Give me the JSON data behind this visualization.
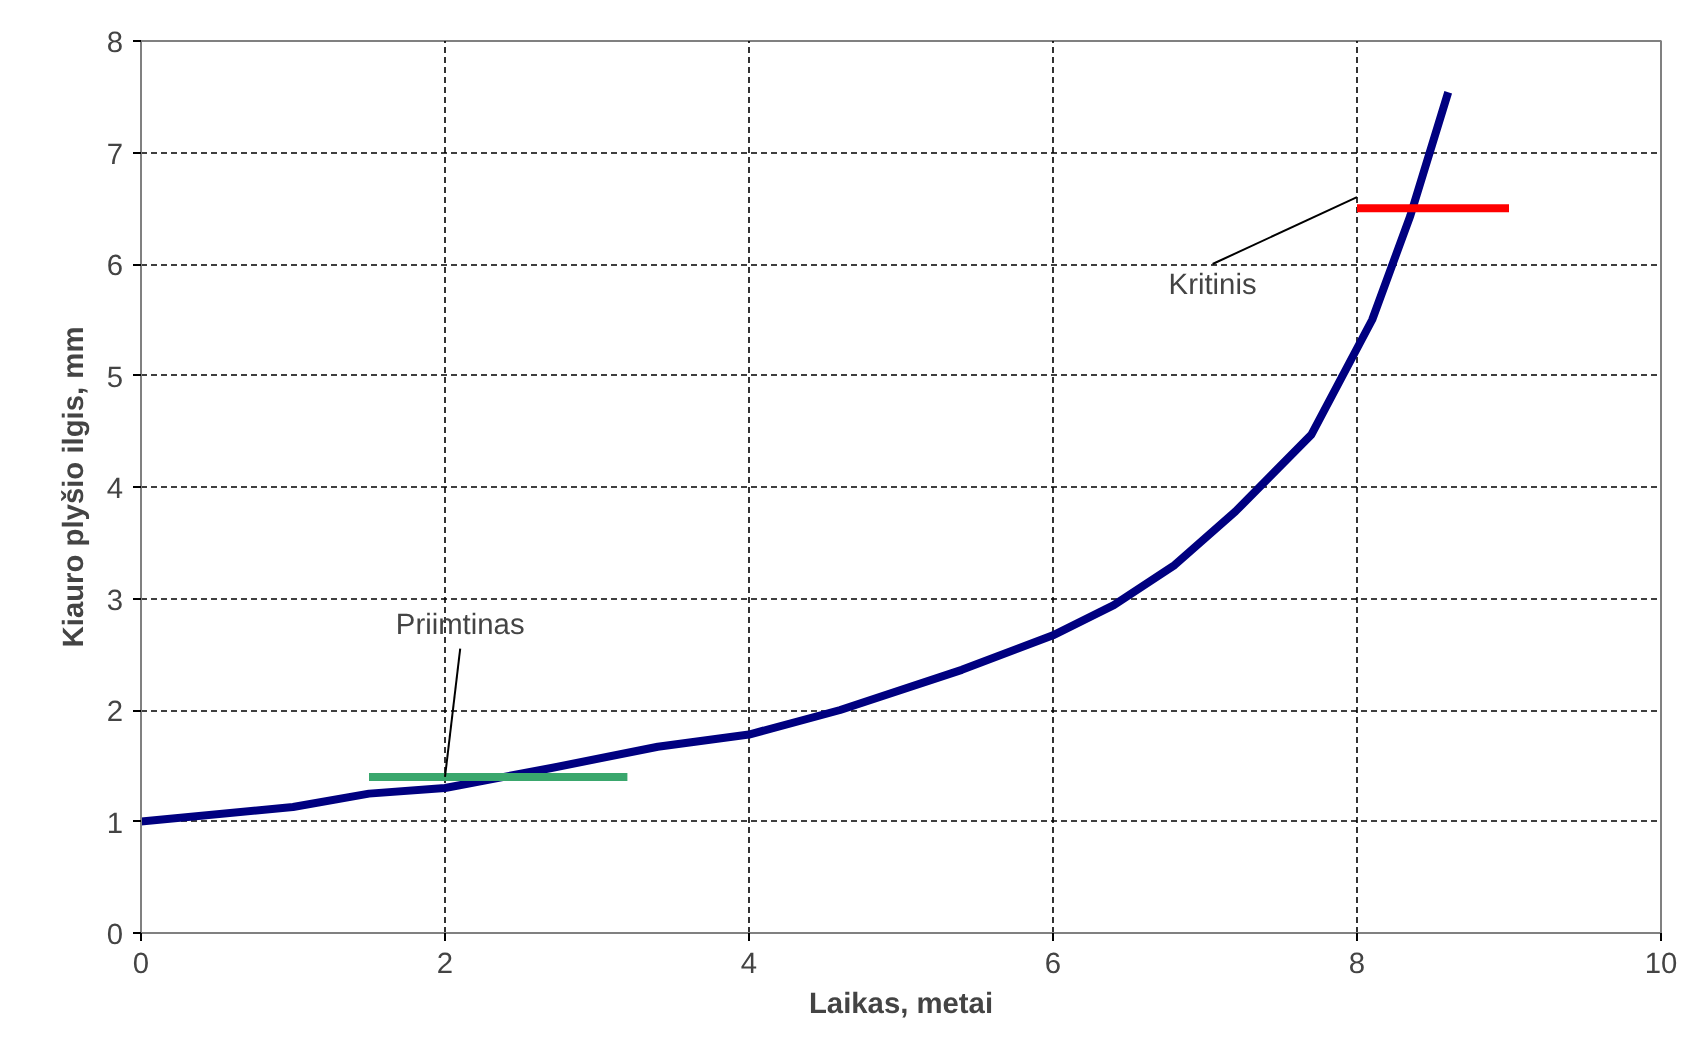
{
  "chart_data": {
    "type": "line",
    "xlabel": "Laikas, metai",
    "ylabel": "Kiauro plyšio ilgis, mm",
    "xlim": [
      0,
      10
    ],
    "ylim": [
      0,
      8
    ],
    "xticks": [
      0,
      2,
      4,
      6,
      8,
      10
    ],
    "yticks": [
      0,
      1,
      2,
      3,
      4,
      5,
      6,
      7,
      8
    ],
    "grid": true,
    "marker": "none",
    "line_style": "solid",
    "series": [
      {
        "color": "#000080",
        "x": [
          0,
          1,
          1.5,
          2,
          2.7,
          3.4,
          4,
          4.6,
          5.4,
          6,
          6.4,
          6.8,
          7.2,
          7.7,
          8.1,
          8.35,
          8.6
        ],
        "values": [
          1.0,
          1.13,
          1.25,
          1.3,
          1.48,
          1.67,
          1.78,
          2.0,
          2.36,
          2.67,
          2.94,
          3.3,
          3.78,
          4.47,
          5.5,
          6.43,
          7.54
        ]
      },
      {
        "color": "#3aa76d",
        "x": [
          1.5,
          3.2
        ],
        "values": [
          1.4,
          1.4
        ]
      },
      {
        "color": "#ff0000",
        "x": [
          8,
          9
        ],
        "values": [
          6.5,
          6.5
        ]
      }
    ],
    "annotations": [
      {
        "text": "Priimtinas",
        "x": 2.0,
        "y": 1.4
      },
      {
        "text": "Kritinis",
        "x": 8.0,
        "y": 6.6
      }
    ]
  }
}
